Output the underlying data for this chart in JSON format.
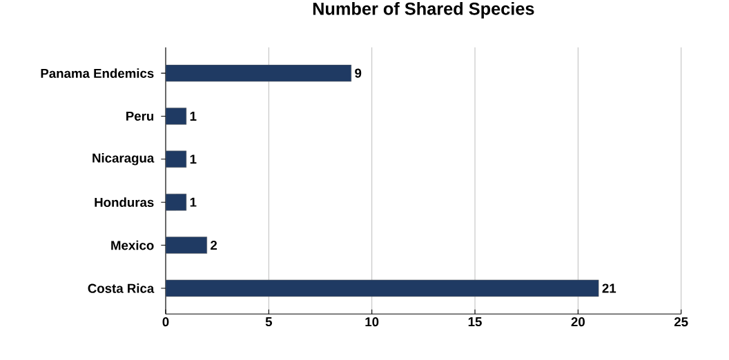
{
  "chart_data": {
    "type": "bar",
    "orientation": "horizontal",
    "title": "Number of Shared Species",
    "categories": [
      "Panama Endemics",
      "Peru",
      "Nicaragua",
      "Honduras",
      "Mexico",
      "Costa Rica"
    ],
    "values": [
      9,
      1,
      1,
      1,
      2,
      21
    ],
    "color": "#1f3a63",
    "xlim": [
      0,
      25
    ],
    "xticks": [
      0,
      5,
      10,
      15,
      20,
      25
    ],
    "grid": "x",
    "data_labels": true
  }
}
